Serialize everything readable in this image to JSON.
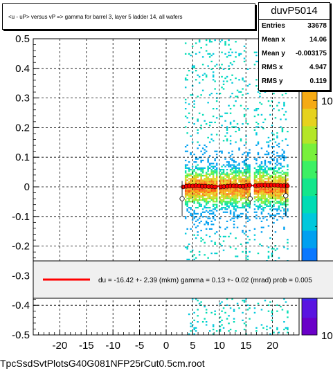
{
  "title": "<u - uP>       versus   vP =>  gamma for barrel 3, layer 5 ladder 14, all wafers",
  "stats": {
    "name": "duvP5014",
    "rows": [
      {
        "label": "Entries",
        "value": "33678"
      },
      {
        "label": "Mean x",
        "value": "14.06"
      },
      {
        "label": "Mean y",
        "value": "-0.003175"
      },
      {
        "label": "RMS x",
        "value": "4.947"
      },
      {
        "label": "RMS y",
        "value": "0.119"
      }
    ]
  },
  "fit_text": "du =  -16.42 +-  2.39 (mkm) gamma =    0.13 +-  0.02 (mrad) prob = 0.005",
  "footer": "TpcSsdSvtPlotsG40G081NFP25rCut0.5cm.root",
  "colors": {
    "fit_line": "#ff0000",
    "profile_marker": "#ff0000"
  },
  "chart_data": {
    "type": "heatmap",
    "xlim": [
      -25,
      25
    ],
    "ylim": [
      -0.5,
      0.5
    ],
    "grid": true,
    "logz": true,
    "x_ticks": [
      -20,
      -15,
      -10,
      -5,
      0,
      5,
      10,
      15,
      20
    ],
    "y_ticks": [
      -0.5,
      -0.4,
      -0.3,
      -0.2,
      -0.1,
      0,
      0.1,
      0.2,
      0.3,
      0.4,
      0.5
    ],
    "y_tick_labels": [
      "-0.5",
      "-0.4",
      "-0.3",
      "-0.2",
      "-0.1",
      "0",
      "0.1",
      "0.2",
      "0.3",
      "0.4",
      "0.5"
    ],
    "z_ticks": [
      1,
      10
    ],
    "z_tick_labels": [
      "1",
      "10"
    ],
    "z_corner_labels": [
      "10",
      "10"
    ],
    "occupied_x_ranges": [
      [
        3.5,
        9.5
      ],
      [
        10.0,
        15.8
      ],
      [
        16.5,
        22.8
      ]
    ],
    "band_center_y": 0.0,
    "profile": {
      "x": [
        3.2,
        3.8,
        4.4,
        5.0,
        5.6,
        6.2,
        6.8,
        7.4,
        8.0,
        8.6,
        9.2,
        10.3,
        10.9,
        11.5,
        12.1,
        12.7,
        13.3,
        13.9,
        14.5,
        15.1,
        15.7,
        16.8,
        17.4,
        18.0,
        18.6,
        19.2,
        19.8,
        20.4,
        21.0,
        21.6,
        22.2,
        22.8
      ],
      "y": [
        0.0,
        0.002,
        0.003,
        0.003,
        0.004,
        0.003,
        0.002,
        0.002,
        0.001,
        0.001,
        0.0,
        0.0,
        0.001,
        0.002,
        0.003,
        0.003,
        0.003,
        0.002,
        0.002,
        0.004,
        0.005,
        0.004,
        0.005,
        0.006,
        0.006,
        0.005,
        0.006,
        0.006,
        0.005,
        0.004,
        0.004,
        0.003
      ]
    },
    "outliers": [
      {
        "x": 3.0,
        "y": -0.04,
        "err": 0.06
      },
      {
        "x": 15.8,
        "y": -0.04,
        "err": 0.02
      },
      {
        "x": 22.5,
        "y": -0.03,
        "err": 0.07
      }
    ],
    "fit_line": {
      "x": [
        3.0,
        22.9
      ],
      "y": [
        0.001,
        0.006
      ]
    },
    "legend": {
      "type": "line",
      "placement": "bottom-overlay"
    }
  }
}
